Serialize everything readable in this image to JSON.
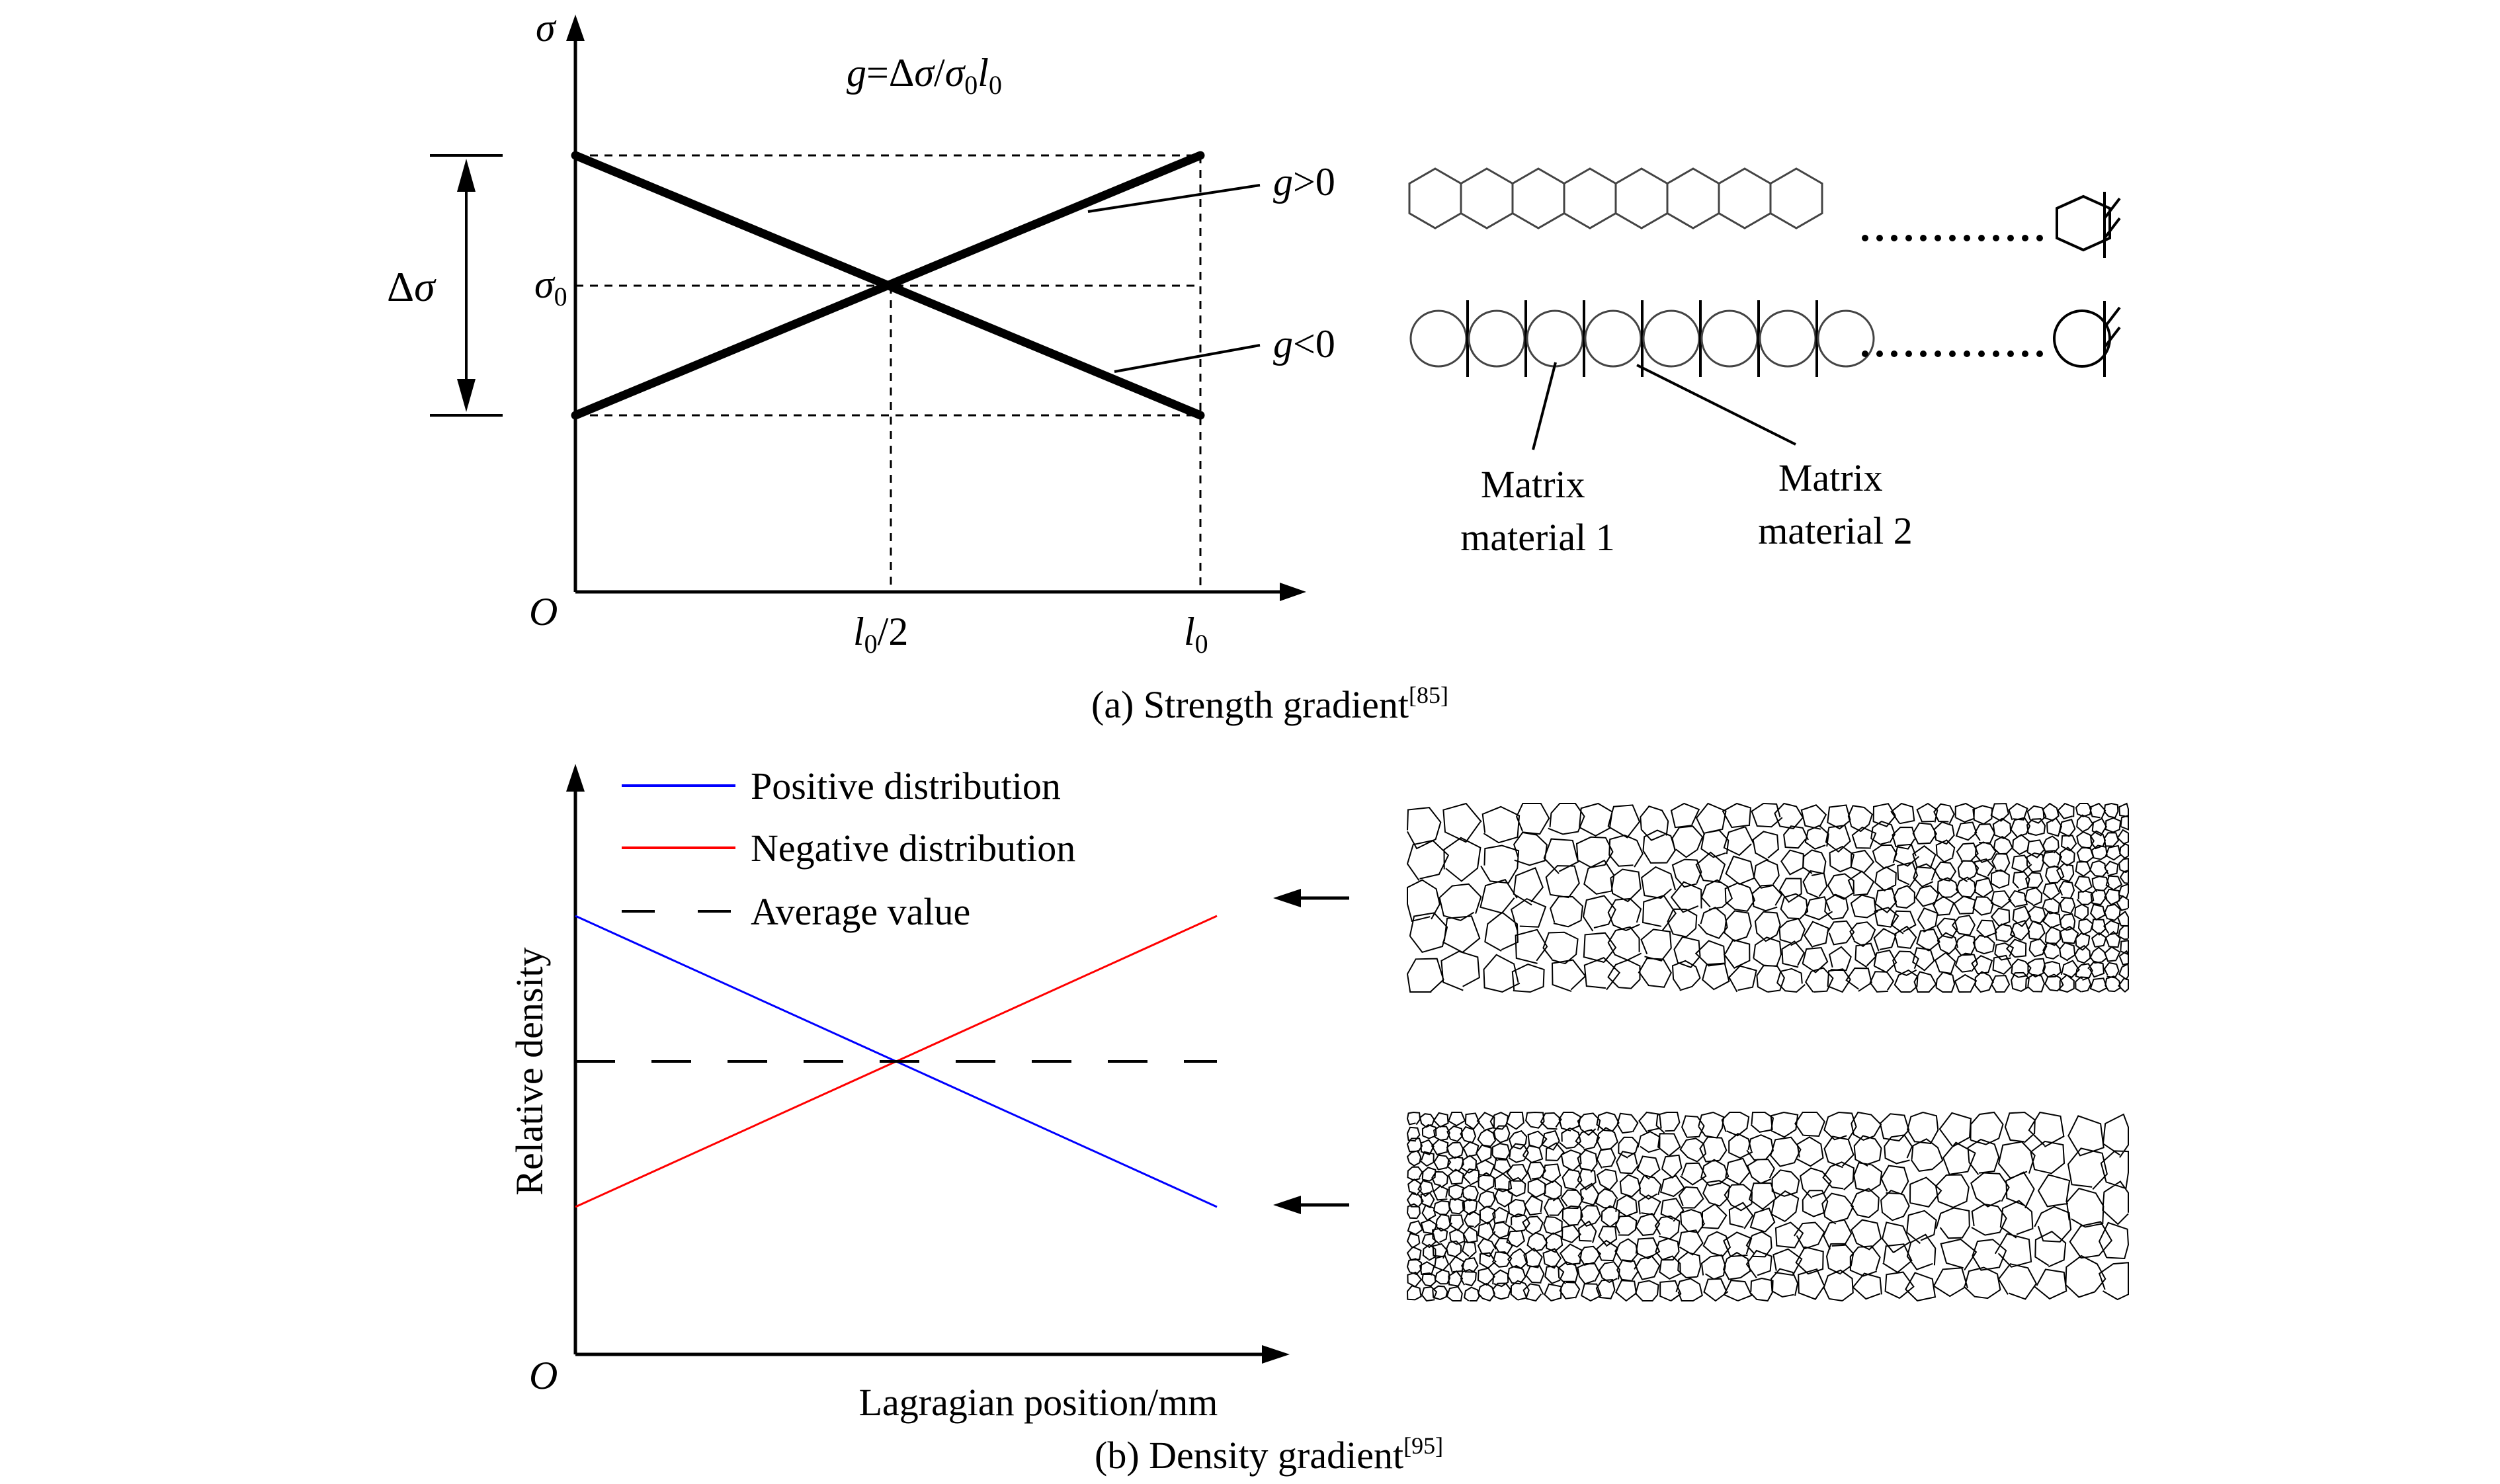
{
  "panel_a": {
    "caption_text": "(a) Strength gradient",
    "caption_ref": "[85]",
    "formula": {
      "g": "g",
      "eq": "=Δ",
      "sigma": "σ",
      "slash": "/",
      "sigma0": "σ",
      "sub0": "0",
      "l": "l",
      "subl": "0"
    },
    "axis": {
      "y_symbol": "σ",
      "origin": "O",
      "sigma0_main": "σ",
      "sigma0_sub": "0",
      "xtick_mid_main": "l",
      "xtick_mid_sub": "0",
      "xtick_mid_tail": "/2",
      "xtick_end_main": "l",
      "xtick_end_sub": "0"
    },
    "delta_label": {
      "delta": "Δ",
      "sigma": "σ"
    },
    "line_labels": {
      "pos": {
        "g": "g",
        "rest": ">0"
      },
      "neg": {
        "g": "g",
        "rest": "<0"
      }
    },
    "matrix_labels": [
      {
        "line1": "Matrix",
        "line2": "material 1"
      },
      {
        "line1": "Matrix",
        "line2": "material 2"
      }
    ]
  },
  "panel_b": {
    "caption_text": "(b) Density gradient",
    "caption_ref": "[95]",
    "y_label": "Relative density",
    "x_label": "Lagragian position/mm",
    "origin": "O",
    "legend": [
      "Positive distribution",
      "Negative distribution",
      "Average value"
    ],
    "colors": {
      "positive": "#0000ff",
      "negative": "#ff0000",
      "average": "#000000"
    }
  },
  "chart_data": {
    "type": "line",
    "xlabel": "Lagragian position/mm",
    "ylabel": "Relative density",
    "series": [
      {
        "name": "Positive distribution",
        "x": [
          0,
          1
        ],
        "y": [
          1.5,
          0.5
        ]
      },
      {
        "name": "Negative distribution",
        "x": [
          0,
          1
        ],
        "y": [
          0.5,
          1.5
        ]
      },
      {
        "name": "Average value",
        "x": [
          0,
          1
        ],
        "y": [
          1.0,
          1.0
        ]
      }
    ]
  }
}
